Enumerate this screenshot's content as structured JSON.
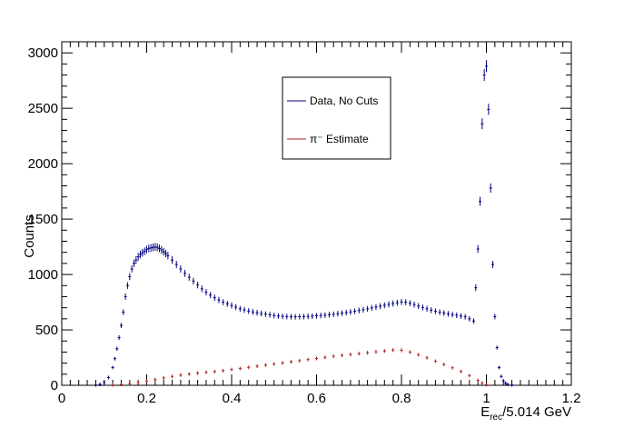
{
  "chart_data": {
    "type": "scatter",
    "title": "",
    "xlabel": {
      "main": "E",
      "sub": "rec",
      "rest": "/5.014 GeV"
    },
    "ylabel": "Counts",
    "xlim": [
      0,
      1.2
    ],
    "ylim": [
      0,
      3100
    ],
    "grid": false,
    "legend_placement": "top-center",
    "x_ticks": [
      {
        "value": 0,
        "label": "0"
      },
      {
        "value": 0.2,
        "label": "0.2"
      },
      {
        "value": 0.4,
        "label": "0.4"
      },
      {
        "value": 0.6,
        "label": "0.6"
      },
      {
        "value": 0.8,
        "label": "0.8"
      },
      {
        "value": 1.0,
        "label": "1"
      },
      {
        "value": 1.2,
        "label": "1.2"
      }
    ],
    "y_ticks": [
      {
        "value": 0,
        "label": "0"
      },
      {
        "value": 500,
        "label": "500"
      },
      {
        "value": 1000,
        "label": "1000"
      },
      {
        "value": 1500,
        "label": "1500"
      },
      {
        "value": 2000,
        "label": "2000"
      },
      {
        "value": 2500,
        "label": "2500"
      },
      {
        "value": 3000,
        "label": "3000"
      }
    ],
    "series": [
      {
        "name": "Data, No Cuts",
        "color": "#000080",
        "points": [
          [
            0.08,
            2
          ],
          [
            0.09,
            8
          ],
          [
            0.1,
            25
          ],
          [
            0.11,
            70
          ],
          [
            0.12,
            160
          ],
          [
            0.125,
            240
          ],
          [
            0.13,
            330
          ],
          [
            0.135,
            430
          ],
          [
            0.14,
            540
          ],
          [
            0.145,
            660
          ],
          [
            0.15,
            800
          ],
          [
            0.155,
            900
          ],
          [
            0.16,
            980
          ],
          [
            0.165,
            1050
          ],
          [
            0.17,
            1100
          ],
          [
            0.175,
            1130
          ],
          [
            0.18,
            1160
          ],
          [
            0.185,
            1180
          ],
          [
            0.19,
            1195
          ],
          [
            0.195,
            1210
          ],
          [
            0.2,
            1225
          ],
          [
            0.205,
            1235
          ],
          [
            0.21,
            1240
          ],
          [
            0.215,
            1245
          ],
          [
            0.22,
            1248
          ],
          [
            0.225,
            1245
          ],
          [
            0.23,
            1235
          ],
          [
            0.235,
            1222
          ],
          [
            0.24,
            1205
          ],
          [
            0.245,
            1190
          ],
          [
            0.25,
            1170
          ],
          [
            0.26,
            1130
          ],
          [
            0.27,
            1090
          ],
          [
            0.28,
            1050
          ],
          [
            0.29,
            1010
          ],
          [
            0.3,
            975
          ],
          [
            0.31,
            940
          ],
          [
            0.32,
            905
          ],
          [
            0.33,
            870
          ],
          [
            0.34,
            840
          ],
          [
            0.35,
            815
          ],
          [
            0.36,
            790
          ],
          [
            0.37,
            770
          ],
          [
            0.38,
            750
          ],
          [
            0.39,
            735
          ],
          [
            0.4,
            720
          ],
          [
            0.41,
            705
          ],
          [
            0.42,
            690
          ],
          [
            0.43,
            680
          ],
          [
            0.44,
            670
          ],
          [
            0.45,
            662
          ],
          [
            0.46,
            655
          ],
          [
            0.47,
            648
          ],
          [
            0.48,
            642
          ],
          [
            0.49,
            636
          ],
          [
            0.5,
            630
          ],
          [
            0.51,
            626
          ],
          [
            0.52,
            622
          ],
          [
            0.53,
            620
          ],
          [
            0.54,
            618
          ],
          [
            0.55,
            618
          ],
          [
            0.56,
            619
          ],
          [
            0.57,
            620
          ],
          [
            0.58,
            622
          ],
          [
            0.59,
            624
          ],
          [
            0.6,
            627
          ],
          [
            0.61,
            630
          ],
          [
            0.62,
            633
          ],
          [
            0.63,
            637
          ],
          [
            0.64,
            641
          ],
          [
            0.65,
            646
          ],
          [
            0.66,
            651
          ],
          [
            0.67,
            656
          ],
          [
            0.68,
            662
          ],
          [
            0.69,
            668
          ],
          [
            0.7,
            675
          ],
          [
            0.71,
            682
          ],
          [
            0.72,
            690
          ],
          [
            0.73,
            698
          ],
          [
            0.74,
            706
          ],
          [
            0.75,
            714
          ],
          [
            0.76,
            722
          ],
          [
            0.77,
            730
          ],
          [
            0.78,
            738
          ],
          [
            0.79,
            745
          ],
          [
            0.8,
            752
          ],
          [
            0.81,
            750
          ],
          [
            0.82,
            740
          ],
          [
            0.83,
            728
          ],
          [
            0.84,
            715
          ],
          [
            0.85,
            702
          ],
          [
            0.86,
            690
          ],
          [
            0.87,
            678
          ],
          [
            0.88,
            668
          ],
          [
            0.89,
            660
          ],
          [
            0.9,
            652
          ],
          [
            0.91,
            645
          ],
          [
            0.92,
            638
          ],
          [
            0.93,
            632
          ],
          [
            0.94,
            625
          ],
          [
            0.95,
            618
          ],
          [
            0.96,
            600
          ],
          [
            0.97,
            580
          ],
          [
            0.975,
            880
          ],
          [
            0.98,
            1230
          ],
          [
            0.985,
            1660
          ],
          [
            0.99,
            2360
          ],
          [
            0.995,
            2800
          ],
          [
            1.0,
            2880
          ],
          [
            1.005,
            2490
          ],
          [
            1.01,
            1780
          ],
          [
            1.015,
            1090
          ],
          [
            1.02,
            620
          ],
          [
            1.025,
            340
          ],
          [
            1.03,
            160
          ],
          [
            1.035,
            80
          ],
          [
            1.04,
            40
          ],
          [
            1.045,
            18
          ],
          [
            1.05,
            8
          ],
          [
            1.06,
            3
          ]
        ]
      },
      {
        "name": "π⁻ Estimate",
        "color": "#b22222",
        "points": [
          [
            0.12,
            3
          ],
          [
            0.14,
            8
          ],
          [
            0.16,
            15
          ],
          [
            0.18,
            25
          ],
          [
            0.2,
            38
          ],
          [
            0.22,
            52
          ],
          [
            0.24,
            66
          ],
          [
            0.26,
            80
          ],
          [
            0.28,
            92
          ],
          [
            0.3,
            102
          ],
          [
            0.32,
            110
          ],
          [
            0.34,
            117
          ],
          [
            0.36,
            124
          ],
          [
            0.38,
            132
          ],
          [
            0.4,
            142
          ],
          [
            0.42,
            152
          ],
          [
            0.44,
            162
          ],
          [
            0.46,
            172
          ],
          [
            0.48,
            182
          ],
          [
            0.5,
            192
          ],
          [
            0.52,
            202
          ],
          [
            0.54,
            212
          ],
          [
            0.56,
            222
          ],
          [
            0.58,
            232
          ],
          [
            0.6,
            242
          ],
          [
            0.62,
            252
          ],
          [
            0.64,
            262
          ],
          [
            0.66,
            270
          ],
          [
            0.68,
            278
          ],
          [
            0.7,
            286
          ],
          [
            0.72,
            294
          ],
          [
            0.74,
            302
          ],
          [
            0.76,
            310
          ],
          [
            0.78,
            318
          ],
          [
            0.8,
            316
          ],
          [
            0.82,
            300
          ],
          [
            0.84,
            276
          ],
          [
            0.86,
            248
          ],
          [
            0.88,
            218
          ],
          [
            0.9,
            188
          ],
          [
            0.92,
            158
          ],
          [
            0.94,
            125
          ],
          [
            0.96,
            88
          ],
          [
            0.98,
            45
          ],
          [
            0.99,
            20
          ],
          [
            1.0,
            5
          ]
        ]
      }
    ]
  }
}
